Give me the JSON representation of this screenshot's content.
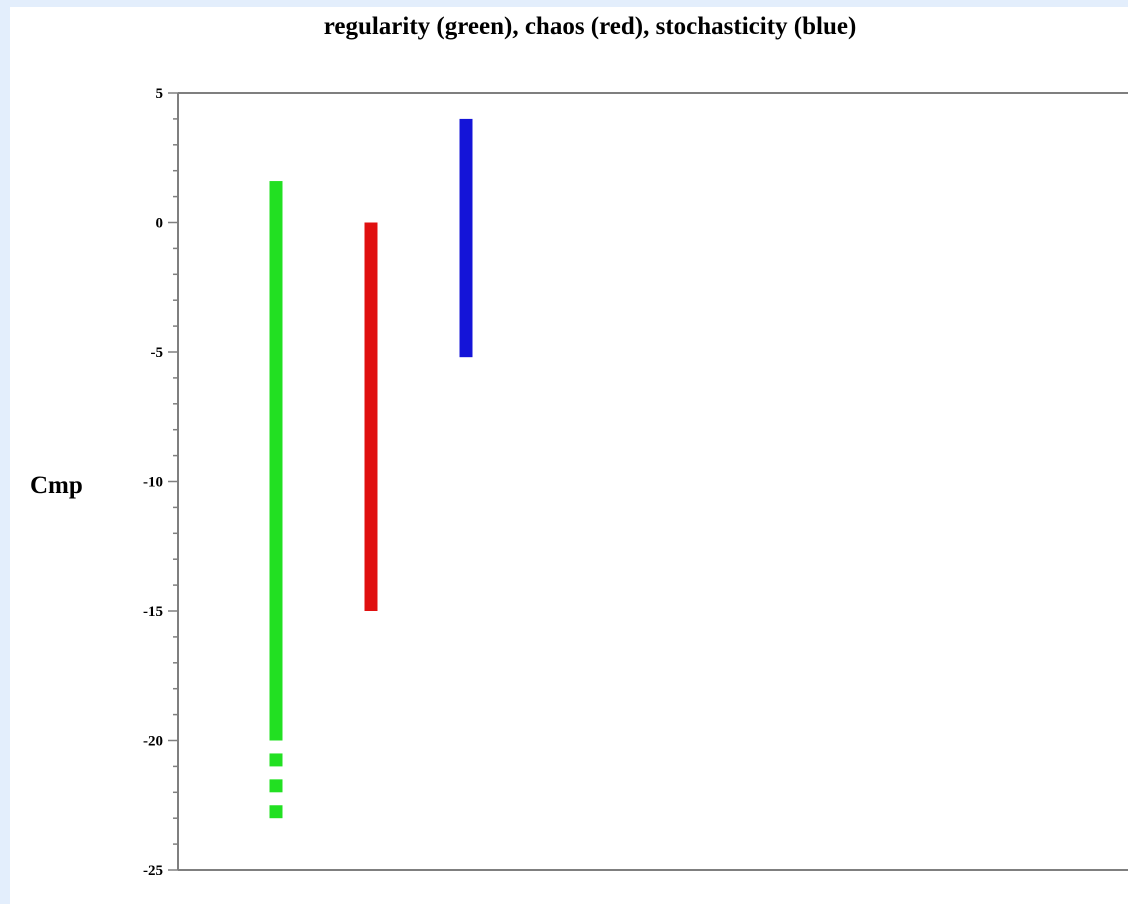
{
  "chart_data": {
    "type": "bar",
    "title": "regularity (green), chaos (red), stochasticity (blue)",
    "xlabel": "",
    "ylabel": "Cmp",
    "ylim": [
      -25,
      5
    ],
    "yticks": [
      "5",
      "0",
      "-5",
      "-10",
      "-15",
      "-20",
      "-25"
    ],
    "grid": false,
    "series": [
      {
        "category": "regularity",
        "color": "#22e022",
        "low": -20,
        "high": 1.6,
        "dashed_extension": {
          "low": -23,
          "high": -20,
          "dashes": [
            [
              -20.5,
              -21.0
            ],
            [
              -21.5,
              -22.0
            ],
            [
              -22.5,
              -23.0
            ]
          ]
        }
      },
      {
        "category": "chaos",
        "color": "#e01010",
        "low": -15,
        "high": 0
      },
      {
        "category": "stochasticity",
        "color": "#1414d8",
        "low": -5.2,
        "high": 4
      }
    ],
    "colors": {
      "axis": "#7f7f7f",
      "frame": "#e3eefc"
    }
  }
}
